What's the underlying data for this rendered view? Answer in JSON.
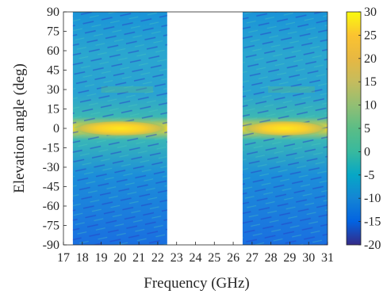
{
  "chart_data": {
    "type": "heatmap",
    "title": "",
    "xlabel": "Frequency (GHz)",
    "ylabel": "Elevation angle (deg)",
    "xlim": [
      17,
      31
    ],
    "ylim": [
      -90,
      90
    ],
    "x_ticks": [
      "17",
      "18",
      "19",
      "20",
      "21",
      "22",
      "23",
      "24",
      "25",
      "26",
      "27",
      "28",
      "29",
      "30",
      "31"
    ],
    "y_ticks": [
      "90",
      "75",
      "60",
      "45",
      "30",
      "15",
      "0",
      "-15",
      "-30",
      "-45",
      "-60",
      "-75",
      "-90"
    ],
    "colorbar": {
      "range": [
        -20,
        30
      ],
      "ticks": [
        "30",
        "25",
        "20",
        "15",
        "10",
        "5",
        "0",
        "-5",
        "-10",
        "-15",
        "-20"
      ],
      "colormap": "parula"
    },
    "data_bands": [
      {
        "x_start": 17.5,
        "x_end": 22.5
      },
      {
        "x_start": 26.5,
        "x_end": 31.0
      }
    ],
    "approx_values": {
      "main_lobe_elevation": 0,
      "main_lobe_peak": 30,
      "background_level": 0,
      "secondary_band_elevation": 30
    }
  }
}
